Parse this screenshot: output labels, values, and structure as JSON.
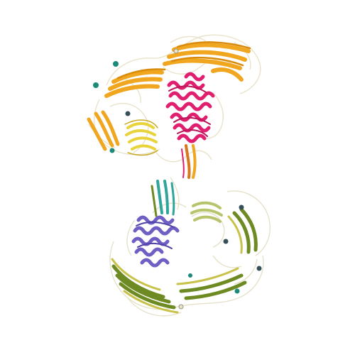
{
  "image": {
    "kind": "protein-structure-ribbon-render",
    "background_color": "#ffffff",
    "palette": {
      "upper_sheets": "#f0a61f",
      "upper_sheets_dark": "#d98b0b",
      "upper_loops": "#e9e3c9",
      "upper_helices": "#e0206e",
      "upper_helices_dark": "#b9165a",
      "upper_domain_small": "#e8d33a",
      "hinge_strands": "#d9771e",
      "lower_sheets": "#6e8a22",
      "lower_sheets_light": "#c8c24a",
      "lower_loops": "#e6e1c9",
      "lower_helices": "#6f5fc4",
      "lower_helices_dark": "#4f42a6",
      "lower_domain_small": "#b8c46b",
      "teal_strands": "#2fa59b",
      "ligand_spheres": "#1b8a7a",
      "ligand_spheres_dark": "#36505a"
    },
    "icons": {
      "molecule": "protein-ribbon-icon",
      "ligand": "ligand-sphere-icon"
    }
  }
}
